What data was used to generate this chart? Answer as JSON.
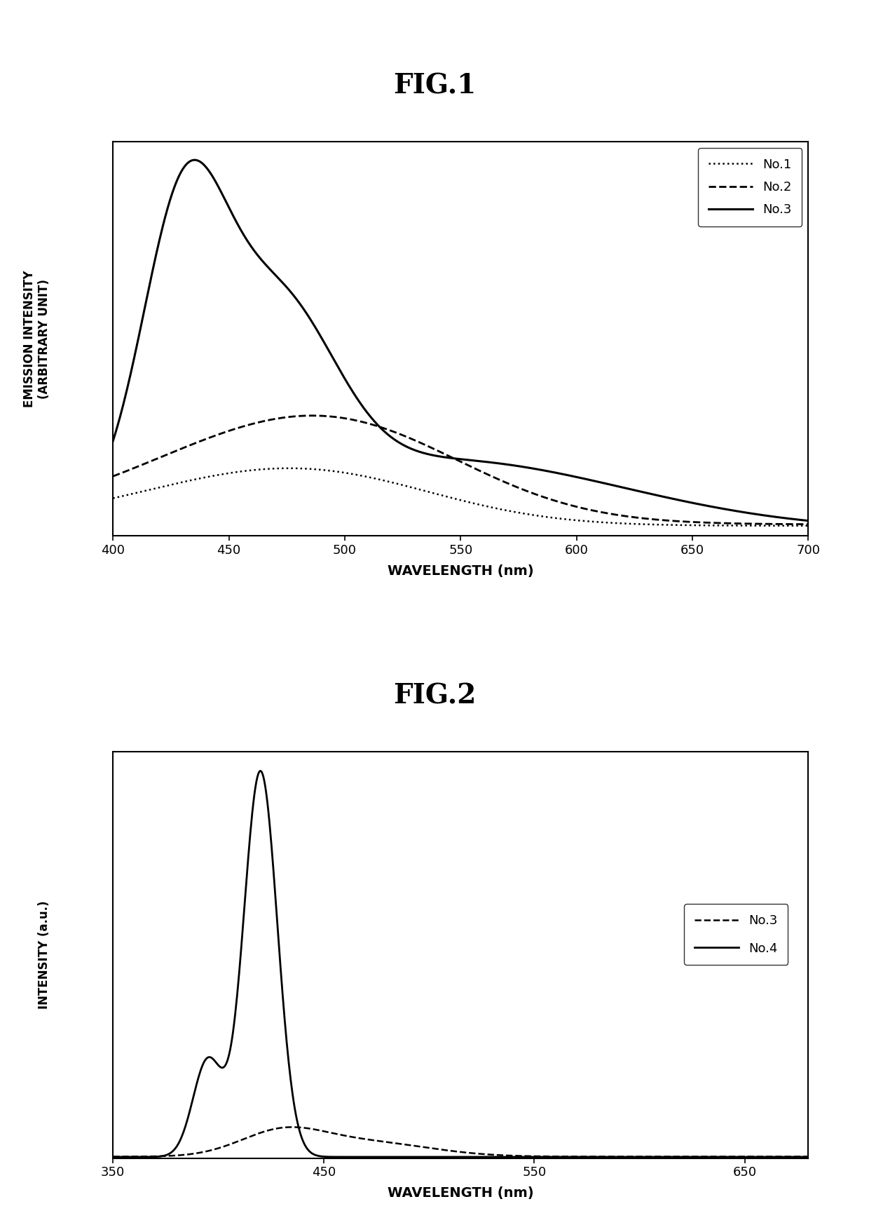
{
  "fig1_title": "FIG.1",
  "fig2_title": "FIG.2",
  "fig1_xlabel": "WAVELENGTH (nm)",
  "fig1_ylabel": "EMISSION INTENSITY\n(ARBITRARY UNIT)",
  "fig2_xlabel": "WAVELENGTH (nm)",
  "fig2_ylabel": "INTENSITY (a.u.)",
  "fig1_xlim": [
    400,
    700
  ],
  "fig1_xticks": [
    400,
    450,
    500,
    550,
    600,
    650,
    700
  ],
  "fig2_xlim": [
    350,
    680
  ],
  "fig2_xticks": [
    350,
    450,
    550,
    650
  ],
  "background_color": "#ffffff",
  "line_color": "#000000"
}
